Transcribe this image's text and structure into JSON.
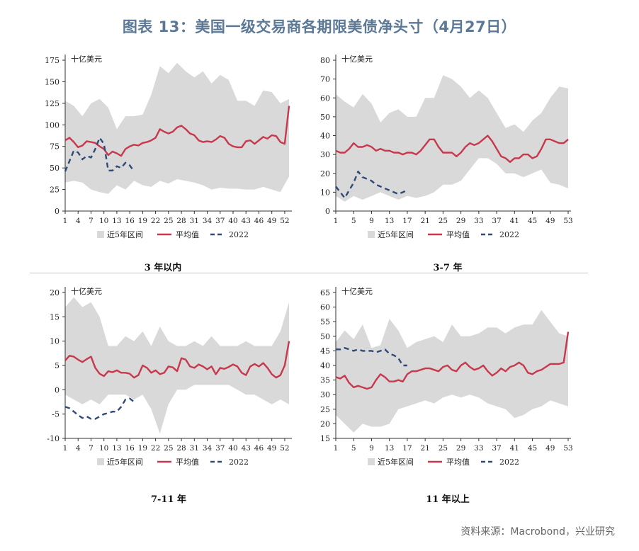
{
  "title": "图表 13：美国一级交易商各期限美债净头寸（4月27日）",
  "source": "资料来源：Macrobond，兴业研究",
  "chart_data": [
    {
      "type": "line",
      "caption": "3 年以内",
      "unit_label": "十亿美元",
      "ylim": [
        0,
        175
      ],
      "yticks": [
        0,
        25,
        50,
        75,
        100,
        125,
        150,
        175
      ],
      "xlim": [
        1,
        53
      ],
      "xticks": [
        1,
        4,
        7,
        10,
        13,
        16,
        19,
        22,
        25,
        28,
        31,
        34,
        37,
        40,
        43,
        46,
        49,
        52
      ],
      "legend": [
        "近5年区间",
        "平均值",
        "2022"
      ],
      "band_x": [
        1,
        3,
        5,
        7,
        9,
        11,
        13,
        15,
        17,
        19,
        21,
        23,
        25,
        27,
        29,
        31,
        33,
        35,
        37,
        39,
        41,
        43,
        45,
        47,
        49,
        51,
        53
      ],
      "band_upper": [
        128,
        122,
        110,
        125,
        130,
        120,
        95,
        110,
        110,
        112,
        135,
        168,
        160,
        172,
        162,
        155,
        162,
        148,
        158,
        152,
        128,
        128,
        122,
        140,
        138,
        125,
        130
      ],
      "band_lower": [
        33,
        35,
        33,
        25,
        22,
        20,
        30,
        25,
        35,
        30,
        28,
        35,
        32,
        37,
        35,
        33,
        30,
        25,
        27,
        26,
        26,
        25,
        25,
        28,
        25,
        22,
        40
      ],
      "series": [
        {
          "name": "平均值",
          "x": [
            1,
            2,
            3,
            4,
            5,
            6,
            7,
            8,
            9,
            10,
            11,
            12,
            13,
            14,
            15,
            16,
            17,
            18,
            19,
            20,
            21,
            22,
            23,
            24,
            25,
            26,
            27,
            28,
            29,
            30,
            31,
            32,
            33,
            34,
            35,
            36,
            37,
            38,
            39,
            40,
            41,
            42,
            43,
            44,
            45,
            46,
            47,
            48,
            49,
            50,
            51,
            52,
            53
          ],
          "values": [
            82,
            85,
            80,
            74,
            76,
            81,
            80,
            79,
            75,
            72,
            65,
            69,
            67,
            64,
            72,
            75,
            77,
            76,
            79,
            80,
            82,
            85,
            95,
            92,
            90,
            92,
            97,
            99,
            95,
            90,
            88,
            82,
            80,
            81,
            80,
            83,
            87,
            85,
            78,
            75,
            74,
            74,
            81,
            82,
            78,
            82,
            86,
            84,
            88,
            87,
            80,
            78,
            122
          ]
        },
        {
          "name": "2022",
          "x": [
            1,
            2,
            3,
            4,
            5,
            6,
            7,
            8,
            9,
            10,
            11,
            12,
            13,
            14,
            15,
            16,
            17
          ],
          "values": [
            46,
            58,
            70,
            68,
            60,
            64,
            62,
            72,
            85,
            78,
            47,
            47,
            52,
            50,
            56,
            53,
            46
          ]
        }
      ]
    },
    {
      "type": "line",
      "caption": "3-7 年",
      "unit_label": "十亿美元",
      "ylim": [
        0,
        80
      ],
      "yticks": [
        0,
        10,
        20,
        30,
        40,
        50,
        60,
        70,
        80
      ],
      "xlim": [
        1,
        53
      ],
      "xticks": [
        1,
        5,
        9,
        13,
        17,
        21,
        25,
        29,
        33,
        37,
        41,
        45,
        49,
        53
      ],
      "legend": [
        "近5年区间",
        "平均值",
        "2022"
      ],
      "band_x": [
        1,
        3,
        5,
        7,
        9,
        11,
        13,
        15,
        17,
        19,
        21,
        23,
        25,
        27,
        29,
        31,
        33,
        35,
        37,
        39,
        41,
        43,
        45,
        47,
        49,
        51,
        53
      ],
      "band_upper": [
        62,
        58,
        55,
        62,
        57,
        47,
        52,
        54,
        50,
        50,
        60,
        60,
        72,
        70,
        66,
        60,
        64,
        60,
        52,
        44,
        46,
        42,
        48,
        52,
        60,
        66,
        65
      ],
      "band_lower": [
        8,
        5,
        8,
        6,
        8,
        10,
        8,
        6,
        8,
        7,
        8,
        10,
        14,
        14,
        16,
        22,
        28,
        28,
        25,
        20,
        20,
        18,
        20,
        22,
        15,
        14,
        12
      ],
      "series": [
        {
          "name": "平均值",
          "x": [
            1,
            2,
            3,
            4,
            5,
            6,
            7,
            8,
            9,
            10,
            11,
            12,
            13,
            14,
            15,
            16,
            17,
            18,
            19,
            20,
            21,
            22,
            23,
            24,
            25,
            26,
            27,
            28,
            29,
            30,
            31,
            32,
            33,
            34,
            35,
            36,
            37,
            38,
            39,
            40,
            41,
            42,
            43,
            44,
            45,
            46,
            47,
            48,
            49,
            50,
            51,
            52,
            53
          ],
          "values": [
            32,
            31,
            31,
            33,
            36,
            34,
            34,
            35,
            34,
            32,
            33,
            32,
            32,
            31,
            31,
            30,
            31,
            31,
            30,
            32,
            35,
            38,
            38,
            34,
            31,
            31,
            31,
            29,
            31,
            34,
            36,
            35,
            36,
            38,
            40,
            37,
            33,
            29,
            28,
            26,
            28,
            28,
            30,
            30,
            28,
            29,
            33,
            38,
            38,
            37,
            36,
            36,
            38
          ]
        },
        {
          "name": "2022",
          "x": [
            1,
            2,
            3,
            4,
            5,
            6,
            7,
            8,
            9,
            10,
            11,
            12,
            13,
            14,
            15,
            16,
            17
          ],
          "values": [
            13,
            10,
            7,
            11,
            15,
            21,
            18,
            17,
            16,
            14,
            13,
            12,
            11,
            10,
            9,
            10,
            11
          ]
        }
      ]
    },
    {
      "type": "line",
      "caption": "7-11 年",
      "unit_label": "十亿美元",
      "ylim": [
        -10,
        20
      ],
      "yticks": [
        -10,
        -5,
        0,
        5,
        10,
        15,
        20
      ],
      "xlim": [
        1,
        53
      ],
      "xticks": [
        1,
        4,
        7,
        10,
        13,
        16,
        19,
        22,
        25,
        28,
        31,
        34,
        37,
        40,
        43,
        46,
        49,
        52
      ],
      "legend": [
        "近5年区间",
        "平均值",
        "2022"
      ],
      "band_x": [
        1,
        3,
        5,
        7,
        9,
        11,
        13,
        15,
        17,
        19,
        21,
        23,
        25,
        27,
        29,
        31,
        33,
        35,
        37,
        39,
        41,
        43,
        45,
        47,
        49,
        51,
        53
      ],
      "band_upper": [
        17,
        19,
        17,
        18,
        15,
        9,
        9,
        11,
        10,
        12,
        9,
        13,
        10,
        9,
        9,
        10,
        9,
        11,
        9,
        9,
        9,
        10,
        9,
        9,
        9,
        12,
        18
      ],
      "band_lower": [
        -1,
        -2,
        -3,
        -2,
        -3,
        -1,
        -1,
        -1,
        -2,
        -1,
        -4,
        -9,
        -3,
        0,
        0,
        1,
        1,
        1,
        1,
        1,
        0,
        -1,
        -1,
        -2,
        -3,
        -2,
        -3
      ],
      "series": [
        {
          "name": "平均值",
          "x": [
            1,
            2,
            3,
            4,
            5,
            6,
            7,
            8,
            9,
            10,
            11,
            12,
            13,
            14,
            15,
            16,
            17,
            18,
            19,
            20,
            21,
            22,
            23,
            24,
            25,
            26,
            27,
            28,
            29,
            30,
            31,
            32,
            33,
            34,
            35,
            36,
            37,
            38,
            39,
            40,
            41,
            42,
            43,
            44,
            45,
            46,
            47,
            48,
            49,
            50,
            51,
            52,
            53
          ],
          "values": [
            6,
            7,
            6.8,
            6.2,
            5.7,
            6.3,
            6.8,
            4.5,
            3.3,
            2.8,
            3.8,
            3.6,
            4,
            3.5,
            3.5,
            3.3,
            2.5,
            3,
            5,
            4.5,
            3.5,
            4,
            3.2,
            3.5,
            4.8,
            4.6,
            3.8,
            6.5,
            6.2,
            4.8,
            4.5,
            5.2,
            4.8,
            4.2,
            4.8,
            3.2,
            4.5,
            4.3,
            4.7,
            5.2,
            4.8,
            3.5,
            3,
            4.8,
            5.3,
            4.8,
            5.5,
            4.5,
            3.2,
            2.5,
            3,
            5,
            10
          ]
        },
        {
          "name": "2022",
          "x": [
            1,
            2,
            3,
            4,
            5,
            6,
            7,
            8,
            9,
            10,
            11,
            12,
            13,
            14,
            15,
            16,
            17
          ],
          "values": [
            -3.5,
            -3.8,
            -4.5,
            -5.2,
            -5.8,
            -5.5,
            -6,
            -6,
            -5.5,
            -5,
            -4.8,
            -4.5,
            -4.5,
            -3.5,
            -2,
            -1.8,
            -2.5
          ]
        }
      ]
    },
    {
      "type": "line",
      "caption": "11 年以上",
      "unit_label": "十亿美元",
      "ylim": [
        15,
        65
      ],
      "yticks": [
        15,
        20,
        25,
        30,
        35,
        40,
        45,
        50,
        55,
        60,
        65
      ],
      "xlim": [
        1,
        53
      ],
      "xticks": [
        1,
        5,
        9,
        13,
        17,
        21,
        25,
        29,
        33,
        37,
        41,
        45,
        49,
        53
      ],
      "legend": [
        "近5年区间",
        "平均值",
        "2022"
      ],
      "band_x": [
        1,
        3,
        5,
        7,
        9,
        11,
        13,
        15,
        17,
        19,
        21,
        23,
        25,
        27,
        29,
        31,
        33,
        35,
        37,
        39,
        41,
        43,
        45,
        47,
        49,
        51,
        53
      ],
      "band_upper": [
        48,
        52,
        49,
        54,
        46,
        47,
        56,
        52,
        46,
        48,
        49,
        50,
        48,
        54,
        50,
        50,
        51,
        53,
        53,
        51,
        53,
        54,
        54,
        59,
        55,
        51,
        50
      ],
      "band_lower": [
        23,
        20,
        17,
        20,
        19,
        19,
        20,
        25,
        26,
        27,
        28,
        27,
        29,
        30,
        29,
        30,
        29,
        27,
        26,
        25,
        22,
        23,
        25,
        26,
        28,
        27,
        26
      ],
      "series": [
        {
          "name": "平均值",
          "x": [
            1,
            2,
            3,
            4,
            5,
            6,
            7,
            8,
            9,
            10,
            11,
            12,
            13,
            14,
            15,
            16,
            17,
            18,
            19,
            20,
            21,
            22,
            23,
            24,
            25,
            26,
            27,
            28,
            29,
            30,
            31,
            32,
            33,
            34,
            35,
            36,
            37,
            38,
            39,
            40,
            41,
            42,
            43,
            44,
            45,
            46,
            47,
            48,
            49,
            50,
            51,
            52,
            53
          ],
          "values": [
            36,
            35.5,
            36.5,
            34,
            32.5,
            33,
            32.5,
            32,
            32.5,
            35,
            37,
            36,
            34.5,
            34.5,
            35,
            34.5,
            37,
            38,
            38,
            38.5,
            39,
            39,
            38.5,
            38,
            39.5,
            40,
            38.5,
            38,
            40,
            41,
            39.5,
            38.5,
            39,
            40,
            38,
            36.5,
            37.5,
            39,
            38,
            39.5,
            40,
            41,
            40,
            37.5,
            37,
            38,
            38.5,
            39.5,
            40.5,
            40.5,
            40.5,
            41,
            51.5
          ]
        },
        {
          "name": "2022",
          "x": [
            1,
            2,
            3,
            4,
            5,
            6,
            7,
            8,
            9,
            10,
            11,
            12,
            13,
            14,
            15,
            16,
            17
          ],
          "values": [
            45.5,
            45.5,
            46,
            45.5,
            45,
            45.5,
            45,
            45,
            45,
            44.5,
            45,
            45.5,
            44,
            43.5,
            42.5,
            40,
            40
          ]
        }
      ]
    }
  ],
  "colors": {
    "band": "#d9d9d9",
    "average": "#c8384d",
    "y2022": "#2f4a78",
    "title": "#5b7896"
  }
}
